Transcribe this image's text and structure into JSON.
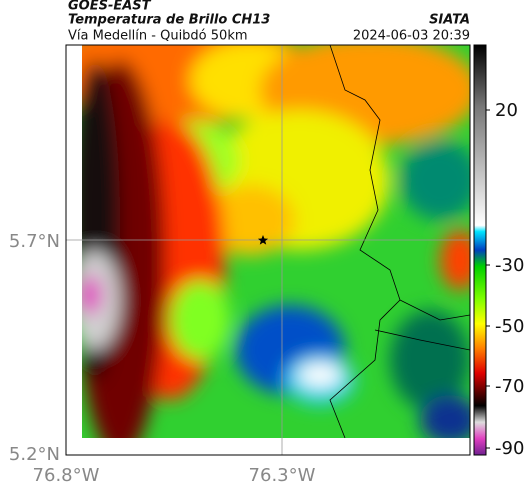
{
  "header": {
    "title": "GOES-EAST",
    "subtitle": "Temperatura de Brillo CH13",
    "source": "SIATA",
    "caption": "Vía Medellín - Quibdó 50km",
    "timestamp": "2024-06-03 20:39"
  },
  "map": {
    "lat_labels": [
      "5.7°N",
      "5.2°N"
    ],
    "lon_labels": [
      "76.8°W",
      "76.3°W"
    ]
  },
  "colorbar": {
    "ticks": [
      20,
      -30,
      -50,
      -70,
      -90
    ]
  }
}
